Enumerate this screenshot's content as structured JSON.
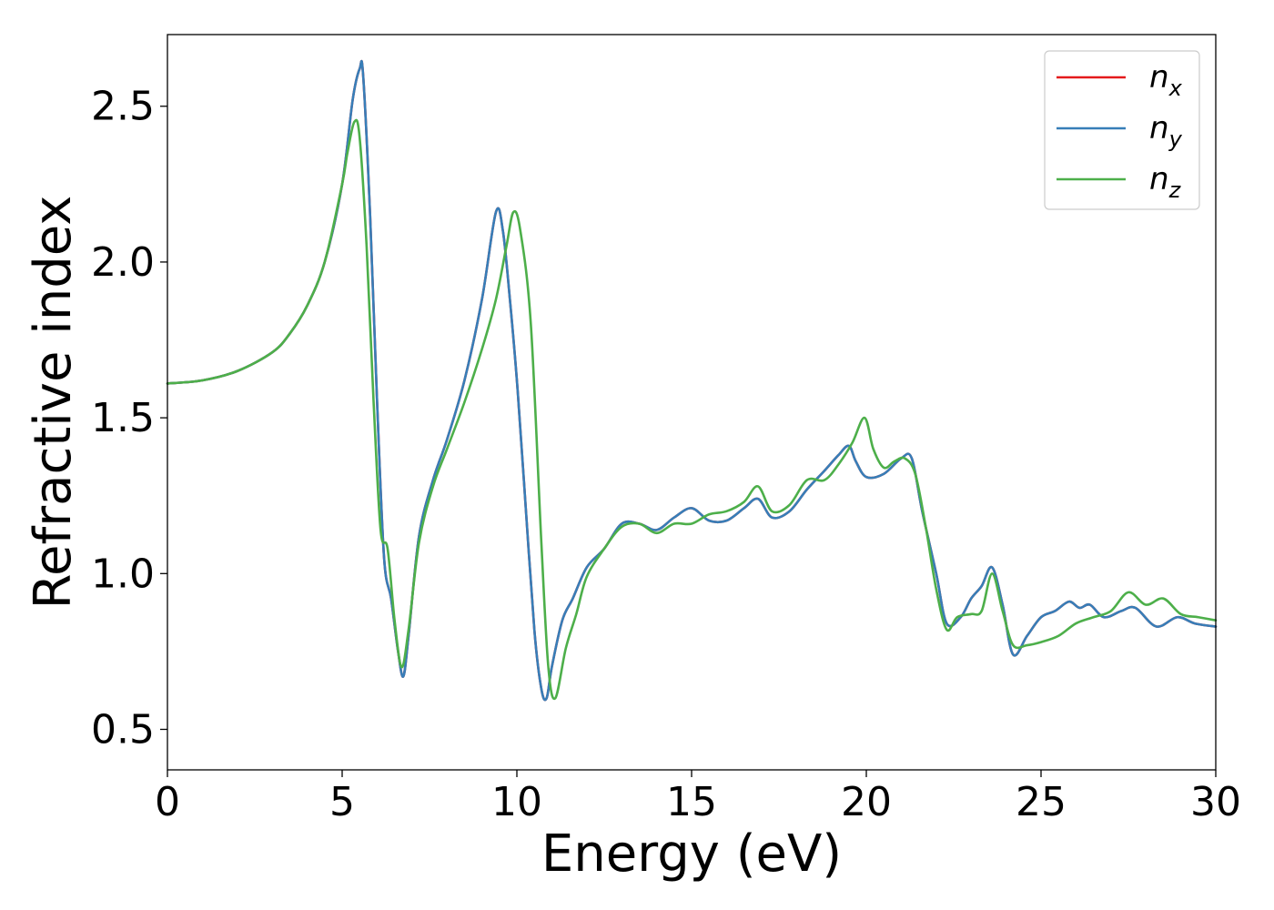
{
  "chart_data": {
    "type": "line",
    "xlabel": "Energy (eV)",
    "ylabel": "Refractive index",
    "xlim": [
      0,
      30
    ],
    "ylim": [
      0.37,
      2.73
    ],
    "xticks": [
      0,
      5,
      10,
      15,
      20,
      25,
      30
    ],
    "xtick_labels": [
      "0",
      "5",
      "10",
      "15",
      "20",
      "25",
      "30"
    ],
    "yticks": [
      0.5,
      1.0,
      1.5,
      2.0,
      2.5
    ],
    "ytick_labels": [
      "0.5",
      "1.0",
      "1.5",
      "2.0",
      "2.5"
    ],
    "grid": false,
    "legend_position": "top-right",
    "series": [
      {
        "name": "n",
        "subscript": "x",
        "color": "#e41a1c",
        "x": [
          0,
          1,
          2,
          3,
          3.5,
          4,
          4.5,
          5,
          5.3,
          5.5,
          5.6,
          5.8,
          6,
          6.2,
          6.4,
          6.6,
          6.75,
          6.9,
          7.2,
          7.6,
          8,
          8.5,
          9,
          9.4,
          9.6,
          9.8,
          10,
          10.2,
          10.5,
          10.7,
          10.85,
          11,
          11.3,
          11.6,
          12,
          12.5,
          13,
          13.5,
          14,
          14.5,
          15,
          15.5,
          16,
          16.5,
          16.9,
          17.3,
          17.8,
          18.3,
          18.8,
          19.2,
          19.5,
          19.7,
          20,
          20.5,
          21,
          21.3,
          21.6,
          22,
          22.3,
          22.7,
          23,
          23.3,
          23.6,
          23.9,
          24.2,
          24.6,
          25,
          25.4,
          25.8,
          26.1,
          26.4,
          26.8,
          27.3,
          27.7,
          28.3,
          28.9,
          29.4,
          30
        ],
        "y": [
          1.61,
          1.62,
          1.65,
          1.71,
          1.77,
          1.86,
          2.0,
          2.25,
          2.52,
          2.62,
          2.6,
          2.15,
          1.55,
          1.05,
          0.92,
          0.75,
          0.67,
          0.8,
          1.12,
          1.3,
          1.43,
          1.62,
          1.88,
          2.16,
          2.1,
          1.88,
          1.62,
          1.3,
          0.82,
          0.63,
          0.6,
          0.7,
          0.85,
          0.92,
          1.02,
          1.08,
          1.16,
          1.16,
          1.14,
          1.18,
          1.21,
          1.17,
          1.17,
          1.21,
          1.24,
          1.18,
          1.2,
          1.27,
          1.33,
          1.38,
          1.41,
          1.36,
          1.31,
          1.32,
          1.37,
          1.37,
          1.2,
          1.0,
          0.84,
          0.86,
          0.92,
          0.96,
          1.02,
          0.9,
          0.74,
          0.8,
          0.86,
          0.88,
          0.91,
          0.89,
          0.9,
          0.86,
          0.88,
          0.89,
          0.83,
          0.86,
          0.84,
          0.83
        ]
      },
      {
        "name": "n",
        "subscript": "y",
        "color": "#377eb8",
        "x": [
          0,
          1,
          2,
          3,
          3.5,
          4,
          4.5,
          5,
          5.3,
          5.5,
          5.6,
          5.8,
          6,
          6.2,
          6.4,
          6.6,
          6.75,
          6.9,
          7.2,
          7.6,
          8,
          8.5,
          9,
          9.4,
          9.6,
          9.8,
          10,
          10.2,
          10.5,
          10.7,
          10.85,
          11,
          11.3,
          11.6,
          12,
          12.5,
          13,
          13.5,
          14,
          14.5,
          15,
          15.5,
          16,
          16.5,
          16.9,
          17.3,
          17.8,
          18.3,
          18.8,
          19.2,
          19.5,
          19.7,
          20,
          20.5,
          21,
          21.3,
          21.6,
          22,
          22.3,
          22.7,
          23,
          23.3,
          23.6,
          23.9,
          24.2,
          24.6,
          25,
          25.4,
          25.8,
          26.1,
          26.4,
          26.8,
          27.3,
          27.7,
          28.3,
          28.9,
          29.4,
          30
        ],
        "y": [
          1.61,
          1.62,
          1.65,
          1.71,
          1.77,
          1.86,
          2.0,
          2.25,
          2.52,
          2.62,
          2.6,
          2.15,
          1.55,
          1.05,
          0.92,
          0.75,
          0.67,
          0.8,
          1.12,
          1.3,
          1.43,
          1.62,
          1.88,
          2.16,
          2.1,
          1.88,
          1.62,
          1.3,
          0.82,
          0.63,
          0.6,
          0.7,
          0.85,
          0.92,
          1.02,
          1.08,
          1.16,
          1.16,
          1.14,
          1.18,
          1.21,
          1.17,
          1.17,
          1.21,
          1.24,
          1.18,
          1.2,
          1.27,
          1.33,
          1.38,
          1.41,
          1.36,
          1.31,
          1.32,
          1.37,
          1.37,
          1.2,
          1.0,
          0.84,
          0.86,
          0.92,
          0.96,
          1.02,
          0.9,
          0.74,
          0.8,
          0.86,
          0.88,
          0.91,
          0.89,
          0.9,
          0.86,
          0.88,
          0.89,
          0.83,
          0.86,
          0.84,
          0.83
        ]
      },
      {
        "name": "n",
        "subscript": "z",
        "color": "#4daf4a",
        "x": [
          0,
          1,
          2,
          3,
          3.5,
          4,
          4.5,
          5,
          5.15,
          5.35,
          5.5,
          5.7,
          5.9,
          6.1,
          6.3,
          6.5,
          6.7,
          6.9,
          7.2,
          7.6,
          8,
          8.5,
          9,
          9.4,
          9.7,
          9.9,
          10.1,
          10.4,
          10.7,
          10.9,
          11.1,
          11.4,
          11.7,
          12,
          12.5,
          13,
          13.5,
          14,
          14.5,
          15,
          15.5,
          16,
          16.5,
          16.9,
          17.3,
          17.8,
          18.3,
          18.8,
          19.2,
          19.6,
          19.95,
          20.2,
          20.5,
          20.8,
          21.1,
          21.4,
          21.7,
          22,
          22.3,
          22.6,
          23,
          23.3,
          23.6,
          23.9,
          24.2,
          24.6,
          25,
          25.5,
          26,
          26.5,
          27,
          27.5,
          28,
          28.5,
          29,
          29.5,
          30
        ],
        "y": [
          1.61,
          1.62,
          1.65,
          1.71,
          1.77,
          1.86,
          2.0,
          2.25,
          2.35,
          2.45,
          2.4,
          2.05,
          1.55,
          1.14,
          1.08,
          0.85,
          0.7,
          0.82,
          1.1,
          1.28,
          1.4,
          1.55,
          1.72,
          1.88,
          2.05,
          2.16,
          2.1,
          1.8,
          1.1,
          0.7,
          0.6,
          0.76,
          0.87,
          0.99,
          1.08,
          1.15,
          1.16,
          1.13,
          1.16,
          1.16,
          1.19,
          1.2,
          1.23,
          1.28,
          1.2,
          1.22,
          1.3,
          1.3,
          1.35,
          1.42,
          1.5,
          1.4,
          1.34,
          1.36,
          1.37,
          1.32,
          1.15,
          0.95,
          0.82,
          0.86,
          0.87,
          0.88,
          1.0,
          0.88,
          0.77,
          0.77,
          0.78,
          0.8,
          0.84,
          0.86,
          0.88,
          0.94,
          0.9,
          0.92,
          0.87,
          0.86,
          0.85
        ]
      }
    ]
  }
}
